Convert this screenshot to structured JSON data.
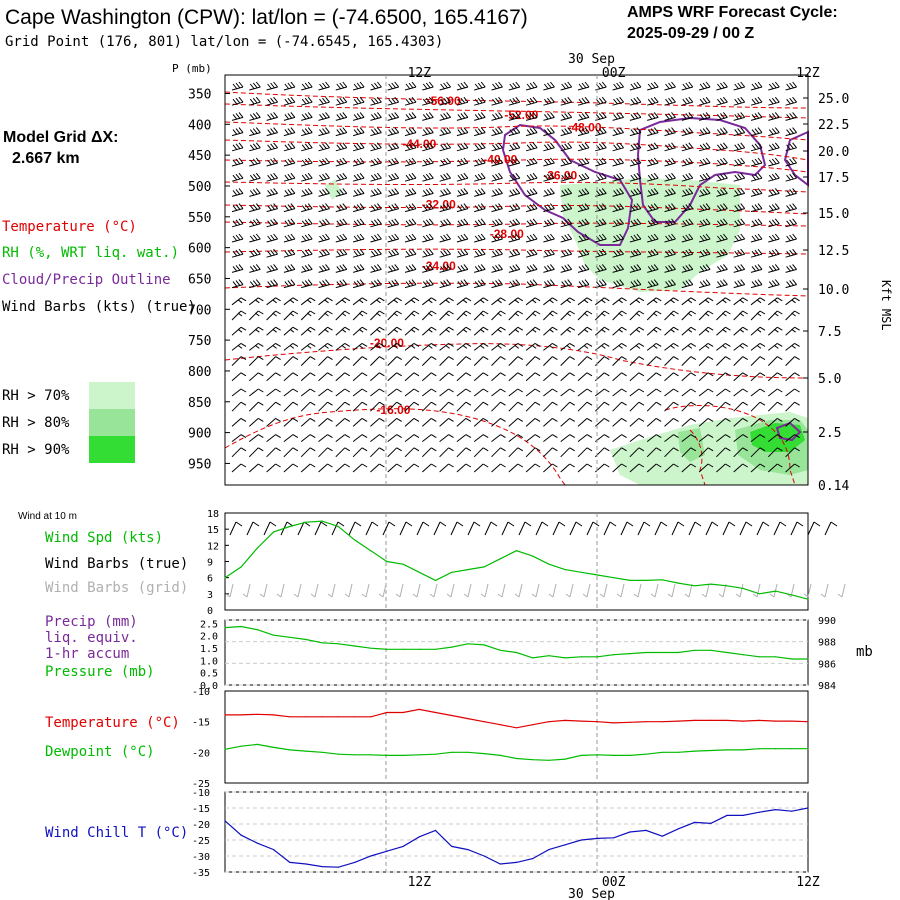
{
  "header": {
    "station_title": "Cape Washington (CPW):  lat/lon = (-74.6500, 165.4167)",
    "grid_point": "Grid Point (176, 801) lat/lon = (-74.6545, 165.4303)",
    "cycle_label": "AMPS WRF Forecast Cycle:",
    "cycle_value": "2025-09-29 / 00  Z"
  },
  "sidebar": {
    "model_grid_label": "Model Grid ΔX:",
    "model_grid_value": "2.667 km",
    "legend_temperature": "Temperature (°C)",
    "legend_rh": "RH (%, WRT liq. wat.)",
    "legend_cloud": "Cloud/Precip Outline",
    "legend_wind": "Wind Barbs (kts) (true)",
    "rh_70": "RH > 70%",
    "rh_80": "RH > 80%",
    "rh_90": "RH > 90%",
    "wind10_title": "Wind at 10 m",
    "wind_spd_label": "Wind Spd (kts)",
    "wind_barbs_true": "Wind Barbs (true)",
    "wind_barbs_grid": "Wind Barbs (grid)",
    "precip_label1": "Precip (mm)",
    "precip_label2": "liq. equiv.",
    "precip_label3": "1-hr accum",
    "pressure_label": "Pressure (mb)",
    "temp_label": "Temperature (°C)",
    "dewpoint_label": "Dewpoint (°C)",
    "windchill_label": "Wind Chill T (°C)"
  },
  "colors": {
    "temperature": "#e00000",
    "rh": "#00bb00",
    "cloud": "#7a2a9a",
    "wind": "#000000",
    "wind_grid": "#b0b0b0",
    "windchill": "#1010c0",
    "rh70": "#ccf5cc",
    "rh80": "#98e498",
    "rh90": "#33dd33"
  },
  "chart_data": [
    {
      "type": "contour",
      "name": "cross-section",
      "y_axis_label": "P (mb)",
      "y_ticks": [
        "350",
        "400",
        "450",
        "500",
        "550",
        "600",
        "650",
        "700",
        "750",
        "800",
        "850",
        "900",
        "950"
      ],
      "right_ticks": [
        "25.0",
        "22.5",
        "20.0",
        "17.5",
        "15.0",
        "12.5",
        "10.0",
        "7.5",
        "5.0",
        "2.5",
        "0.14"
      ],
      "right_axis_label": "Kft MSL",
      "x_ticks_top": [
        "12Z",
        "00Z",
        "12Z"
      ],
      "date_label": "30 Sep",
      "time_range_hours": [
        0,
        36
      ],
      "pressure_range_mb": [
        320,
        985
      ],
      "temperature_labels": [
        {
          "text": "-56.00",
          "hour": 13.5,
          "p": 362
        },
        {
          "text": "-52.00",
          "hour": 18.3,
          "p": 385
        },
        {
          "text": "-48.00",
          "hour": 22.2,
          "p": 405
        },
        {
          "text": "-44.00",
          "hour": 12.0,
          "p": 432
        },
        {
          "text": "-40.00",
          "hour": 17.0,
          "p": 457
        },
        {
          "text": "-36.00",
          "hour": 20.7,
          "p": 483
        },
        {
          "text": "-32.00",
          "hour": 13.2,
          "p": 530
        },
        {
          "text": "-28.00",
          "hour": 17.4,
          "p": 578
        },
        {
          "text": "-24.00",
          "hour": 13.2,
          "p": 630
        },
        {
          "text": "-20.00",
          "hour": 10.0,
          "p": 755
        },
        {
          "text": "-16.00",
          "hour": 10.4,
          "p": 863
        }
      ]
    },
    {
      "type": "line",
      "name": "wind-speed",
      "ylabel": "kts",
      "ylim": [
        0,
        18
      ],
      "y_ticks": [
        "0",
        "3",
        "6",
        "9",
        "12",
        "15",
        "18"
      ],
      "x": [
        0,
        1,
        2,
        3,
        4,
        5,
        6,
        7,
        8,
        9,
        10,
        11,
        12,
        13,
        14,
        15,
        16,
        17,
        18,
        19,
        20,
        21,
        22,
        23,
        24,
        25,
        26,
        27,
        28,
        29,
        30,
        31,
        32,
        33,
        34,
        35,
        36
      ],
      "values": [
        6,
        8,
        11.5,
        14.5,
        15.5,
        16.3,
        16.5,
        15.5,
        13,
        11,
        9,
        8.5,
        7,
        5.5,
        7,
        7.5,
        8,
        9.5,
        11,
        10,
        8.5,
        7.5,
        7,
        6.5,
        6,
        5.5,
        5.5,
        5.6,
        5,
        4.5,
        4.8,
        4.5,
        4,
        3,
        3.5,
        2.8,
        2
      ],
      "color": "#00bb00"
    },
    {
      "type": "line",
      "name": "pressure",
      "ylabel": "mb",
      "ylim": [
        984,
        990
      ],
      "y_ticks_right": [
        "984",
        "986",
        "988",
        "990"
      ],
      "y_ticks_left": [
        "0.0",
        "0.5",
        "1.0",
        "1.5",
        "2.0",
        "2.5"
      ],
      "values": [
        989.3,
        989.4,
        989.1,
        988.6,
        988.4,
        988.2,
        987.9,
        987.8,
        987.6,
        987.4,
        987.3,
        987.3,
        987.3,
        987.3,
        987.5,
        987.8,
        987.7,
        987.2,
        987.0,
        986.5,
        986.7,
        986.5,
        986.6,
        986.6,
        986.8,
        986.9,
        987.0,
        987.0,
        987.0,
        987.2,
        987.2,
        987.0,
        986.8,
        986.6,
        986.6,
        986.4,
        986.4
      ],
      "color": "#00bb00"
    },
    {
      "type": "line",
      "name": "temperature-dewpoint",
      "ylabel": "°C",
      "ylim": [
        -25,
        -10
      ],
      "y_ticks": [
        "-10",
        "-15",
        "-20",
        "-25"
      ],
      "series": [
        {
          "name": "Temperature",
          "color": "#e00000",
          "values": [
            -13.9,
            -13.9,
            -13.8,
            -13.9,
            -14.2,
            -14.2,
            -14.2,
            -14.2,
            -14.2,
            -14.2,
            -13.5,
            -13.5,
            -13.0,
            -13.5,
            -14.0,
            -14.5,
            -15.0,
            -15.5,
            -16.0,
            -15.5,
            -15.0,
            -14.8,
            -14.9,
            -15.0,
            -15.2,
            -15.1,
            -15.0,
            -15.0,
            -14.9,
            -14.8,
            -14.8,
            -14.8,
            -14.9,
            -14.8,
            -14.9,
            -14.9,
            -15.0
          ]
        },
        {
          "name": "Dewpoint",
          "color": "#00bb00",
          "values": [
            -19.5,
            -19.0,
            -18.7,
            -19.2,
            -19.6,
            -19.8,
            -20.0,
            -20.3,
            -20.4,
            -20.4,
            -20.5,
            -20.5,
            -20.4,
            -20.3,
            -20.0,
            -20.0,
            -20.2,
            -20.5,
            -21.0,
            -21.2,
            -21.3,
            -21.1,
            -20.5,
            -20.4,
            -20.5,
            -20.5,
            -20.3,
            -20.0,
            -20.0,
            -19.8,
            -19.7,
            -19.6,
            -19.6,
            -19.4,
            -19.4,
            -19.4,
            -19.4
          ]
        }
      ]
    },
    {
      "type": "line",
      "name": "wind-chill",
      "ylabel": "°C",
      "ylim": [
        -35,
        -10
      ],
      "y_ticks": [
        "-10",
        "-15",
        "-20",
        "-25",
        "-30",
        "-35"
      ],
      "values": [
        -19,
        -23.5,
        -26,
        -28,
        -32,
        -32.5,
        -33.3,
        -33.5,
        -32,
        -30,
        -28.5,
        -27,
        -24,
        -22,
        -27,
        -28,
        -30,
        -32.5,
        -32,
        -30.8,
        -28,
        -26.5,
        -25,
        -24.5,
        -24.3,
        -22.5,
        -22,
        -23.8,
        -21.5,
        -19.5,
        -19.8,
        -17.3,
        -17.3,
        -16.3,
        -15.5,
        -16,
        -15
      ],
      "color": "#1010c0"
    }
  ],
  "footer": {
    "x_ticks_bottom": [
      "12Z",
      "00Z",
      "12Z"
    ],
    "date_label": "30 Sep"
  }
}
